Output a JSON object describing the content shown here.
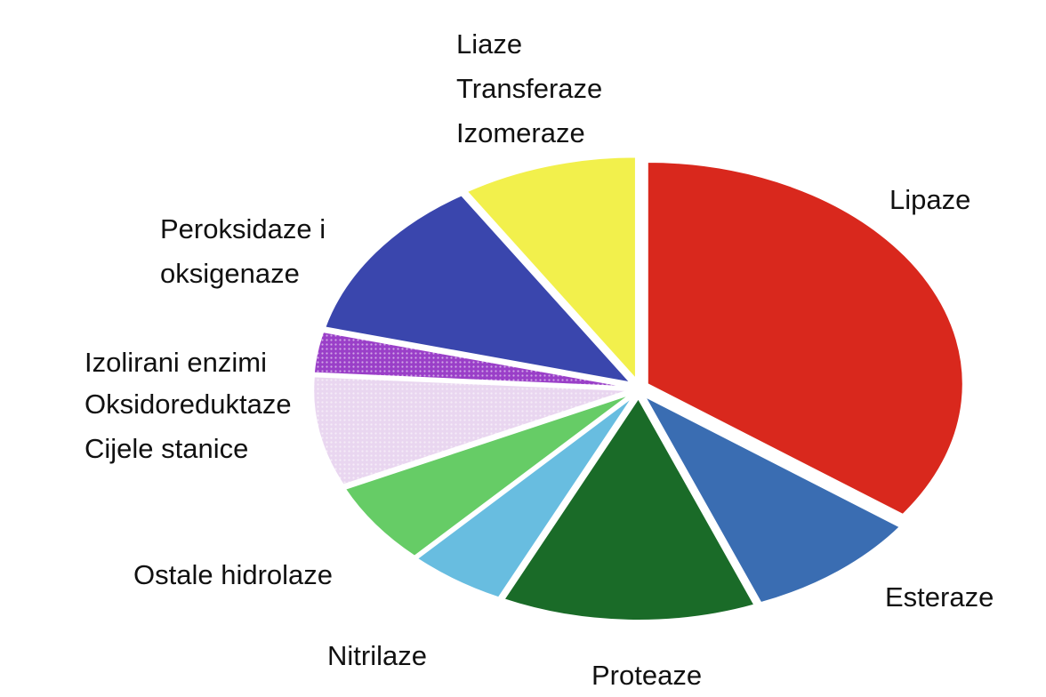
{
  "chart_data": {
    "type": "pie",
    "categories": [
      [
        "Lipaze"
      ],
      [
        "Esteraze"
      ],
      [
        "Proteaze"
      ],
      [
        "Nitrilaze"
      ],
      [
        "Ostale hidrolaze"
      ],
      [
        "Izolirani enzimi"
      ],
      [
        "Oksidoreduktaze",
        "Cijele stanice"
      ],
      [
        "Peroksidaze i",
        "oksigenaze"
      ],
      [
        "Liaze",
        "Transferaze",
        "Izomeraze"
      ]
    ],
    "values": [
      35,
      9,
      13,
      5,
      6,
      8,
      3,
      12,
      9
    ],
    "colors": [
      "#d9281d",
      "#3a6db2",
      "#1a6b28",
      "#68bde0",
      "#66cc66",
      "#e9d6f0",
      "#9a3fc8",
      "#3a46ad",
      "#f2f04c"
    ]
  }
}
